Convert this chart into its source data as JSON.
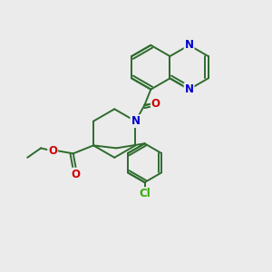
{
  "bg_color": "#ebebeb",
  "bond_color": "#2d6b2d",
  "n_color": "#0000cc",
  "o_color": "#cc0000",
  "cl_color": "#33aa00",
  "bond_width": 1.4,
  "figsize": [
    3.0,
    3.0
  ],
  "dpi": 100,
  "xlim": [
    0,
    10
  ],
  "ylim": [
    0,
    10
  ]
}
